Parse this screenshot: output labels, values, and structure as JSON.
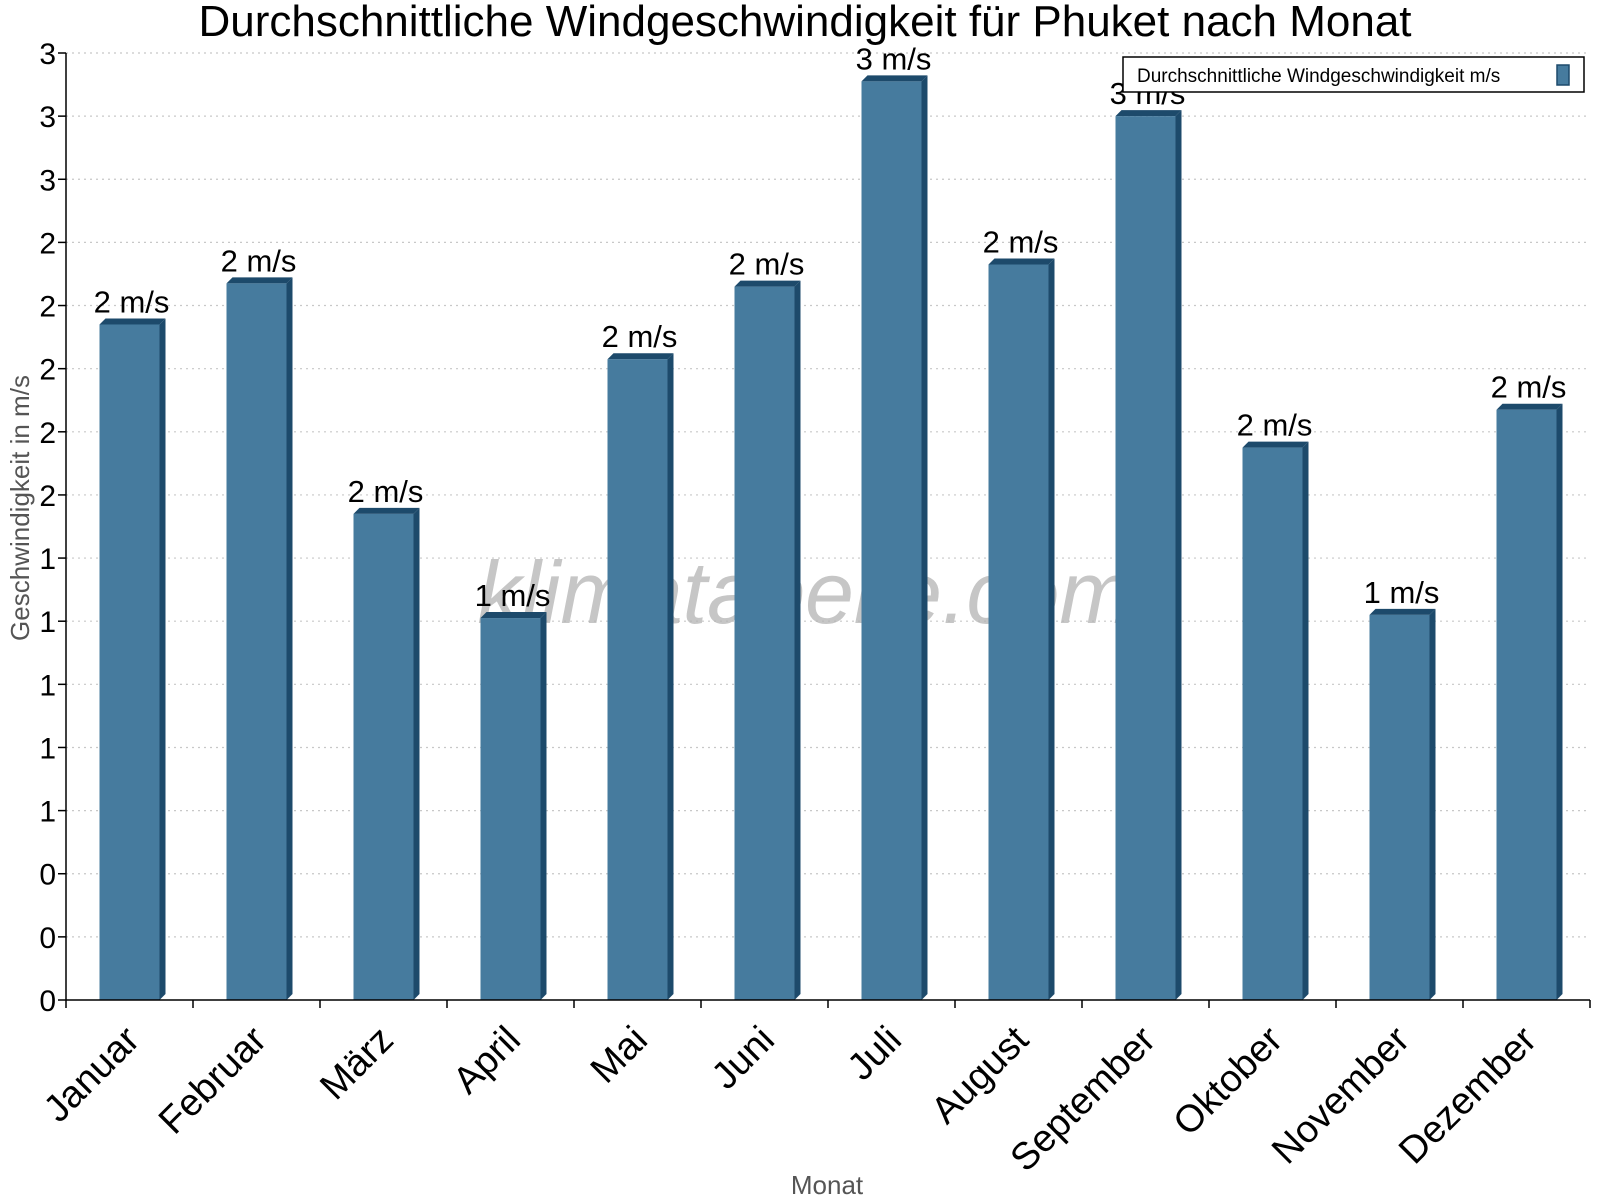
{
  "watermark": "klimatabelle.com",
  "colors": {
    "bar_front": "#467b9e",
    "bar_side": "#1d4a6b",
    "bar_top": "#1d4a6b",
    "grid": "#c8c8c8",
    "axis": "#000000"
  },
  "chart_data": {
    "type": "bar",
    "title": "Durchschnittliche Windgeschwindigkeit für Phuket nach Monat",
    "xlabel": "Monat",
    "ylabel": "Geschwindigkeit in m/s",
    "ylim": [
      0,
      3.0
    ],
    "yticks": [
      0,
      0.2,
      0.4,
      0.6,
      0.8,
      1.0,
      1.2,
      1.4,
      1.6,
      1.8,
      2.0,
      2.2,
      2.4,
      2.6,
      2.8,
      3.0
    ],
    "ytick_labels": [
      "0",
      "0",
      "0",
      "1",
      "1",
      "1",
      "1",
      "1",
      "2",
      "2",
      "2",
      "2",
      "2",
      "3",
      "3",
      "3"
    ],
    "grid": true,
    "legend_position": "top-right",
    "categories": [
      "Januar",
      "Februar",
      "März",
      "April",
      "Mai",
      "Juni",
      "Juli",
      "August",
      "September",
      "Oktober",
      "November",
      "Dezember"
    ],
    "series": [
      {
        "name": "Durchschnittliche Windgeschwindigkeit m/s",
        "values": [
          2.14,
          2.27,
          1.54,
          1.21,
          2.03,
          2.26,
          2.91,
          2.33,
          2.8,
          1.75,
          1.22,
          1.87
        ],
        "data_labels": [
          "2 m/s",
          "2 m/s",
          "2 m/s",
          "1 m/s",
          "2 m/s",
          "2 m/s",
          "3 m/s",
          "2 m/s",
          "3 m/s",
          "2 m/s",
          "1 m/s",
          "2 m/s"
        ]
      }
    ]
  }
}
